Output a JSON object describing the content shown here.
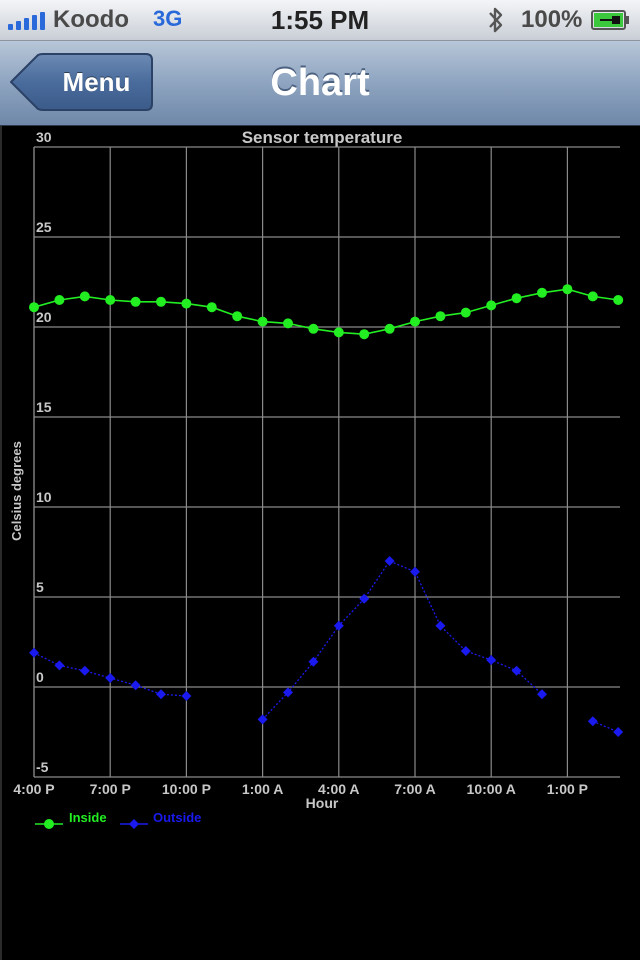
{
  "status_bar": {
    "carrier": "Koodo",
    "network": "3G",
    "time": "1:55 PM",
    "battery": "100%",
    "icons": [
      "signal-bars-icon",
      "bluetooth-icon",
      "battery-charging-icon"
    ]
  },
  "nav": {
    "back_label": "Menu",
    "title": "Chart"
  },
  "colors": {
    "inside": "#22ee22",
    "outside": "#1a1aee",
    "grid": "#8a8a8a",
    "text": "#c8c8c8"
  },
  "chart_data": {
    "type": "line",
    "title": "Sensor temperature",
    "xlabel": "Hour",
    "ylabel": "Celsius degrees",
    "ylim": [
      -5,
      30
    ],
    "yticks": [
      -5,
      0,
      5,
      10,
      15,
      20,
      25,
      30
    ],
    "x_range_hours": [
      0,
      23
    ],
    "xticks": [
      {
        "hour": 0,
        "label": "4:00 P"
      },
      {
        "hour": 3,
        "label": "7:00 P"
      },
      {
        "hour": 6,
        "label": "10:00 P"
      },
      {
        "hour": 9,
        "label": "1:00 A"
      },
      {
        "hour": 12,
        "label": "4:00 A"
      },
      {
        "hour": 15,
        "label": "7:00 A"
      },
      {
        "hour": 18,
        "label": "10:00 A"
      },
      {
        "hour": 21,
        "label": "1:00 P"
      }
    ],
    "grid": true,
    "legend_position": "bottom-left",
    "series": [
      {
        "name": "Inside",
        "marker": "circle",
        "points": [
          [
            0,
            21.1
          ],
          [
            1,
            21.5
          ],
          [
            2,
            21.7
          ],
          [
            3,
            21.5
          ],
          [
            4,
            21.4
          ],
          [
            5,
            21.4
          ],
          [
            6,
            21.3
          ],
          [
            7,
            21.1
          ],
          [
            8,
            20.6
          ],
          [
            9,
            20.3
          ],
          [
            10,
            20.2
          ],
          [
            11,
            19.9
          ],
          [
            12,
            19.7
          ],
          [
            13,
            19.6
          ],
          [
            14,
            19.9
          ],
          [
            15,
            20.3
          ],
          [
            16,
            20.6
          ],
          [
            17,
            20.8
          ],
          [
            18,
            21.2
          ],
          [
            19,
            21.6
          ],
          [
            20,
            21.9
          ],
          [
            21,
            22.1
          ],
          [
            22,
            21.7
          ],
          [
            23,
            21.5
          ]
        ]
      },
      {
        "name": "Outside",
        "marker": "diamond",
        "segments": [
          [
            [
              0,
              1.9
            ],
            [
              1,
              1.2
            ],
            [
              2,
              0.9
            ],
            [
              3,
              0.5
            ],
            [
              4,
              0.1
            ],
            [
              5,
              -0.4
            ],
            [
              6,
              -0.5
            ]
          ],
          [
            [
              9,
              -1.8
            ],
            [
              10,
              -0.3
            ],
            [
              11,
              1.4
            ],
            [
              12,
              3.4
            ],
            [
              13,
              4.9
            ],
            [
              14,
              7.0
            ],
            [
              15,
              6.4
            ],
            [
              16,
              3.4
            ],
            [
              17,
              2.0
            ],
            [
              18,
              1.5
            ],
            [
              19,
              0.9
            ],
            [
              20,
              -0.4
            ]
          ],
          [
            [
              22,
              -1.9
            ],
            [
              23,
              -2.5
            ]
          ]
        ]
      }
    ]
  }
}
